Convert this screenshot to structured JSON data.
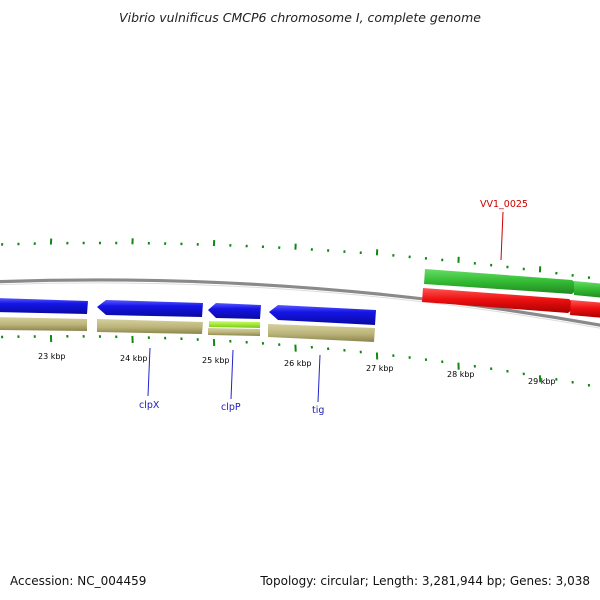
{
  "title": "Vibrio vulnificus CMCP6 chromosome I, complete genome",
  "footer": {
    "accession": "Accession: NC_004459",
    "topology": "Topology: circular; Length: 3,281,944 bp; Genes: 3,038"
  },
  "colors": {
    "background": "#ffffff",
    "backbone": "#7a7a7a",
    "ticks": "#118811",
    "blue_gene": "#1212dd",
    "khaki_gene": "#bdb67a",
    "lime_gene": "#99ee22",
    "green_gene": "#33bb33",
    "red_gene": "#ee1111",
    "label_blue": "#1a1abb",
    "label_red": "#cc0000"
  },
  "scale": {
    "unit": "kbp",
    "labels": [
      "23 kbp",
      "24 kbp",
      "25 kbp",
      "26 kbp",
      "27 kbp",
      "28 kbp",
      "29 kbp"
    ]
  },
  "genes": [
    {
      "id": "blue-1",
      "strand": "-",
      "color": "blue_gene",
      "label": ""
    },
    {
      "id": "khaki-1",
      "strand": "-",
      "color": "khaki_gene",
      "label": ""
    },
    {
      "id": "clpX",
      "strand": "-",
      "color": "blue_gene",
      "label": "clpX"
    },
    {
      "id": "khaki-clpX",
      "strand": "-",
      "color": "khaki_gene",
      "label": ""
    },
    {
      "id": "clpP",
      "strand": "-",
      "color": "blue_gene",
      "label": "clpP"
    },
    {
      "id": "lime-clpP",
      "strand": "-",
      "color": "lime_gene",
      "label": ""
    },
    {
      "id": "khaki-clpP",
      "strand": "-",
      "color": "khaki_gene",
      "label": ""
    },
    {
      "id": "tig",
      "strand": "-",
      "color": "blue_gene",
      "label": "tig"
    },
    {
      "id": "khaki-tig",
      "strand": "-",
      "color": "khaki_gene",
      "label": ""
    },
    {
      "id": "VV1_0025",
      "strand": "+",
      "color": "green_gene",
      "label": "VV1_0025"
    },
    {
      "id": "red-1",
      "strand": "+",
      "color": "red_gene",
      "label": ""
    }
  ]
}
